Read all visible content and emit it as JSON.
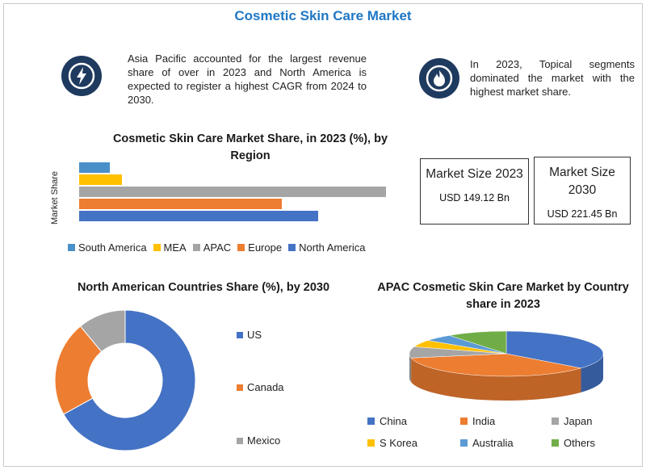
{
  "title": "Cosmetic Skin Care Market",
  "info_left": "Asia Pacific accounted for the largest revenue share of over in 2023 and North America is expected to register a highest CAGR from 2024 to 2030.",
  "info_right": "In 2023, Topical segments dominated the market with the highest market share.",
  "icons": {
    "left": "lightning-bolt-icon",
    "right": "flame-icon"
  },
  "market_size": [
    {
      "label": "Market Size 2023",
      "value": "USD 149.12 Bn"
    },
    {
      "label": "Market Size 2030",
      "value": "USD 221.45 Bn"
    }
  ],
  "chart_data": [
    {
      "type": "bar",
      "orientation": "horizontal",
      "title": "Cosmetic Skin Care Market Share, in 2023 (%), by Region",
      "ylabel": "Market Share",
      "legend_position": "bottom",
      "series": [
        {
          "name": "South America",
          "value": 10,
          "color": "#4a90c8"
        },
        {
          "name": "MEA",
          "value": 14,
          "color": "#ffc000"
        },
        {
          "name": "APAC",
          "value": 100,
          "color": "#a5a5a5"
        },
        {
          "name": "Europe",
          "value": 66,
          "color": "#ed7d31"
        },
        {
          "name": "North America",
          "value": 78,
          "color": "#4472c4"
        }
      ],
      "xlim": [
        0,
        100
      ]
    },
    {
      "type": "pie",
      "variant": "donut",
      "title": "North American Countries Share (%), by 2030",
      "legend_position": "right",
      "slices": [
        {
          "name": "US",
          "value": 67,
          "color": "#4472c4"
        },
        {
          "name": "Canada",
          "value": 22,
          "color": "#ed7d31"
        },
        {
          "name": "Mexico",
          "value": 11,
          "color": "#a5a5a5"
        }
      ]
    },
    {
      "type": "pie",
      "variant": "3d",
      "title": "APAC  Cosmetic Skin Care Market by Country share in 2023",
      "legend_position": "bottom",
      "slices": [
        {
          "name": "China",
          "value": 36,
          "color": "#4472c4"
        },
        {
          "name": "India",
          "value": 36,
          "color": "#ed7d31"
        },
        {
          "name": "Japan",
          "value": 8,
          "color": "#a5a5a5"
        },
        {
          "name": "S Korea",
          "value": 5,
          "color": "#ffc000"
        },
        {
          "name": "Australia",
          "value": 5,
          "color": "#5b9bd5"
        },
        {
          "name": "Others",
          "value": 10,
          "color": "#70ad47"
        }
      ]
    }
  ]
}
